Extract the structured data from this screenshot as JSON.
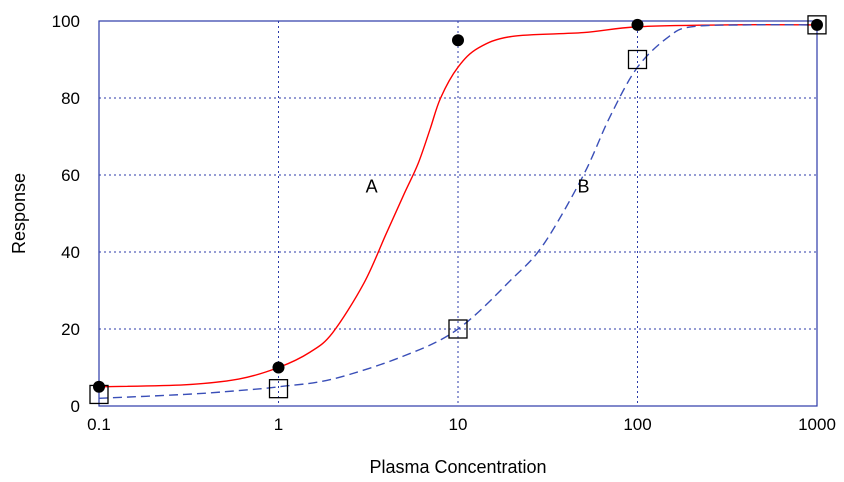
{
  "chart_data": {
    "type": "scatter",
    "title": "",
    "xlabel": "Plasma Concentration",
    "ylabel": "Response",
    "xscale": "log",
    "xlim": [
      0.1,
      1000
    ],
    "ylim": [
      0,
      100
    ],
    "x_ticks": [
      "0.1",
      "1",
      "10",
      "100",
      "1000"
    ],
    "y_ticks": [
      "0",
      "20",
      "40",
      "60",
      "80",
      "100"
    ],
    "grid": true,
    "legend": "none",
    "series": [
      {
        "name": "A",
        "color": "#ff0000",
        "line_style": "solid",
        "marker": "filled-circle",
        "points": [
          {
            "x": 0.1,
            "y": 5
          },
          {
            "x": 1,
            "y": 10
          },
          {
            "x": 10,
            "y": 95
          },
          {
            "x": 100,
            "y": 99
          },
          {
            "x": 1000,
            "y": 99
          }
        ],
        "curve": [
          {
            "x": 0.1,
            "y": 5
          },
          {
            "x": 0.3,
            "y": 5.5
          },
          {
            "x": 0.6,
            "y": 7
          },
          {
            "x": 1,
            "y": 10
          },
          {
            "x": 1.5,
            "y": 14
          },
          {
            "x": 2,
            "y": 19
          },
          {
            "x": 3,
            "y": 32
          },
          {
            "x": 4,
            "y": 45
          },
          {
            "x": 5,
            "y": 55
          },
          {
            "x": 6,
            "y": 63
          },
          {
            "x": 7,
            "y": 72
          },
          {
            "x": 8,
            "y": 80
          },
          {
            "x": 10,
            "y": 88
          },
          {
            "x": 13,
            "y": 93
          },
          {
            "x": 20,
            "y": 96
          },
          {
            "x": 50,
            "y": 97
          },
          {
            "x": 100,
            "y": 98.5
          },
          {
            "x": 300,
            "y": 99
          },
          {
            "x": 1000,
            "y": 99
          }
        ]
      },
      {
        "name": "B",
        "color": "#3a4fb8",
        "line_style": "dashed",
        "marker": "open-square",
        "points": [
          {
            "x": 0.1,
            "y": 3
          },
          {
            "x": 1,
            "y": 4.5
          },
          {
            "x": 10,
            "y": 20
          },
          {
            "x": 100,
            "y": 90
          },
          {
            "x": 1000,
            "y": 99
          }
        ],
        "curve": [
          {
            "x": 0.1,
            "y": 2
          },
          {
            "x": 0.3,
            "y": 3
          },
          {
            "x": 0.6,
            "y": 4
          },
          {
            "x": 1,
            "y": 5
          },
          {
            "x": 2,
            "y": 7
          },
          {
            "x": 5,
            "y": 13
          },
          {
            "x": 10,
            "y": 20
          },
          {
            "x": 20,
            "y": 33
          },
          {
            "x": 30,
            "y": 42
          },
          {
            "x": 50,
            "y": 60
          },
          {
            "x": 70,
            "y": 75
          },
          {
            "x": 100,
            "y": 88
          },
          {
            "x": 150,
            "y": 96
          },
          {
            "x": 200,
            "y": 98.5
          },
          {
            "x": 400,
            "y": 99
          },
          {
            "x": 1000,
            "y": 99
          }
        ]
      }
    ],
    "annotations": [
      {
        "text": "A",
        "x": 3.3,
        "y": 57
      },
      {
        "text": "B",
        "x": 50,
        "y": 57
      }
    ]
  }
}
